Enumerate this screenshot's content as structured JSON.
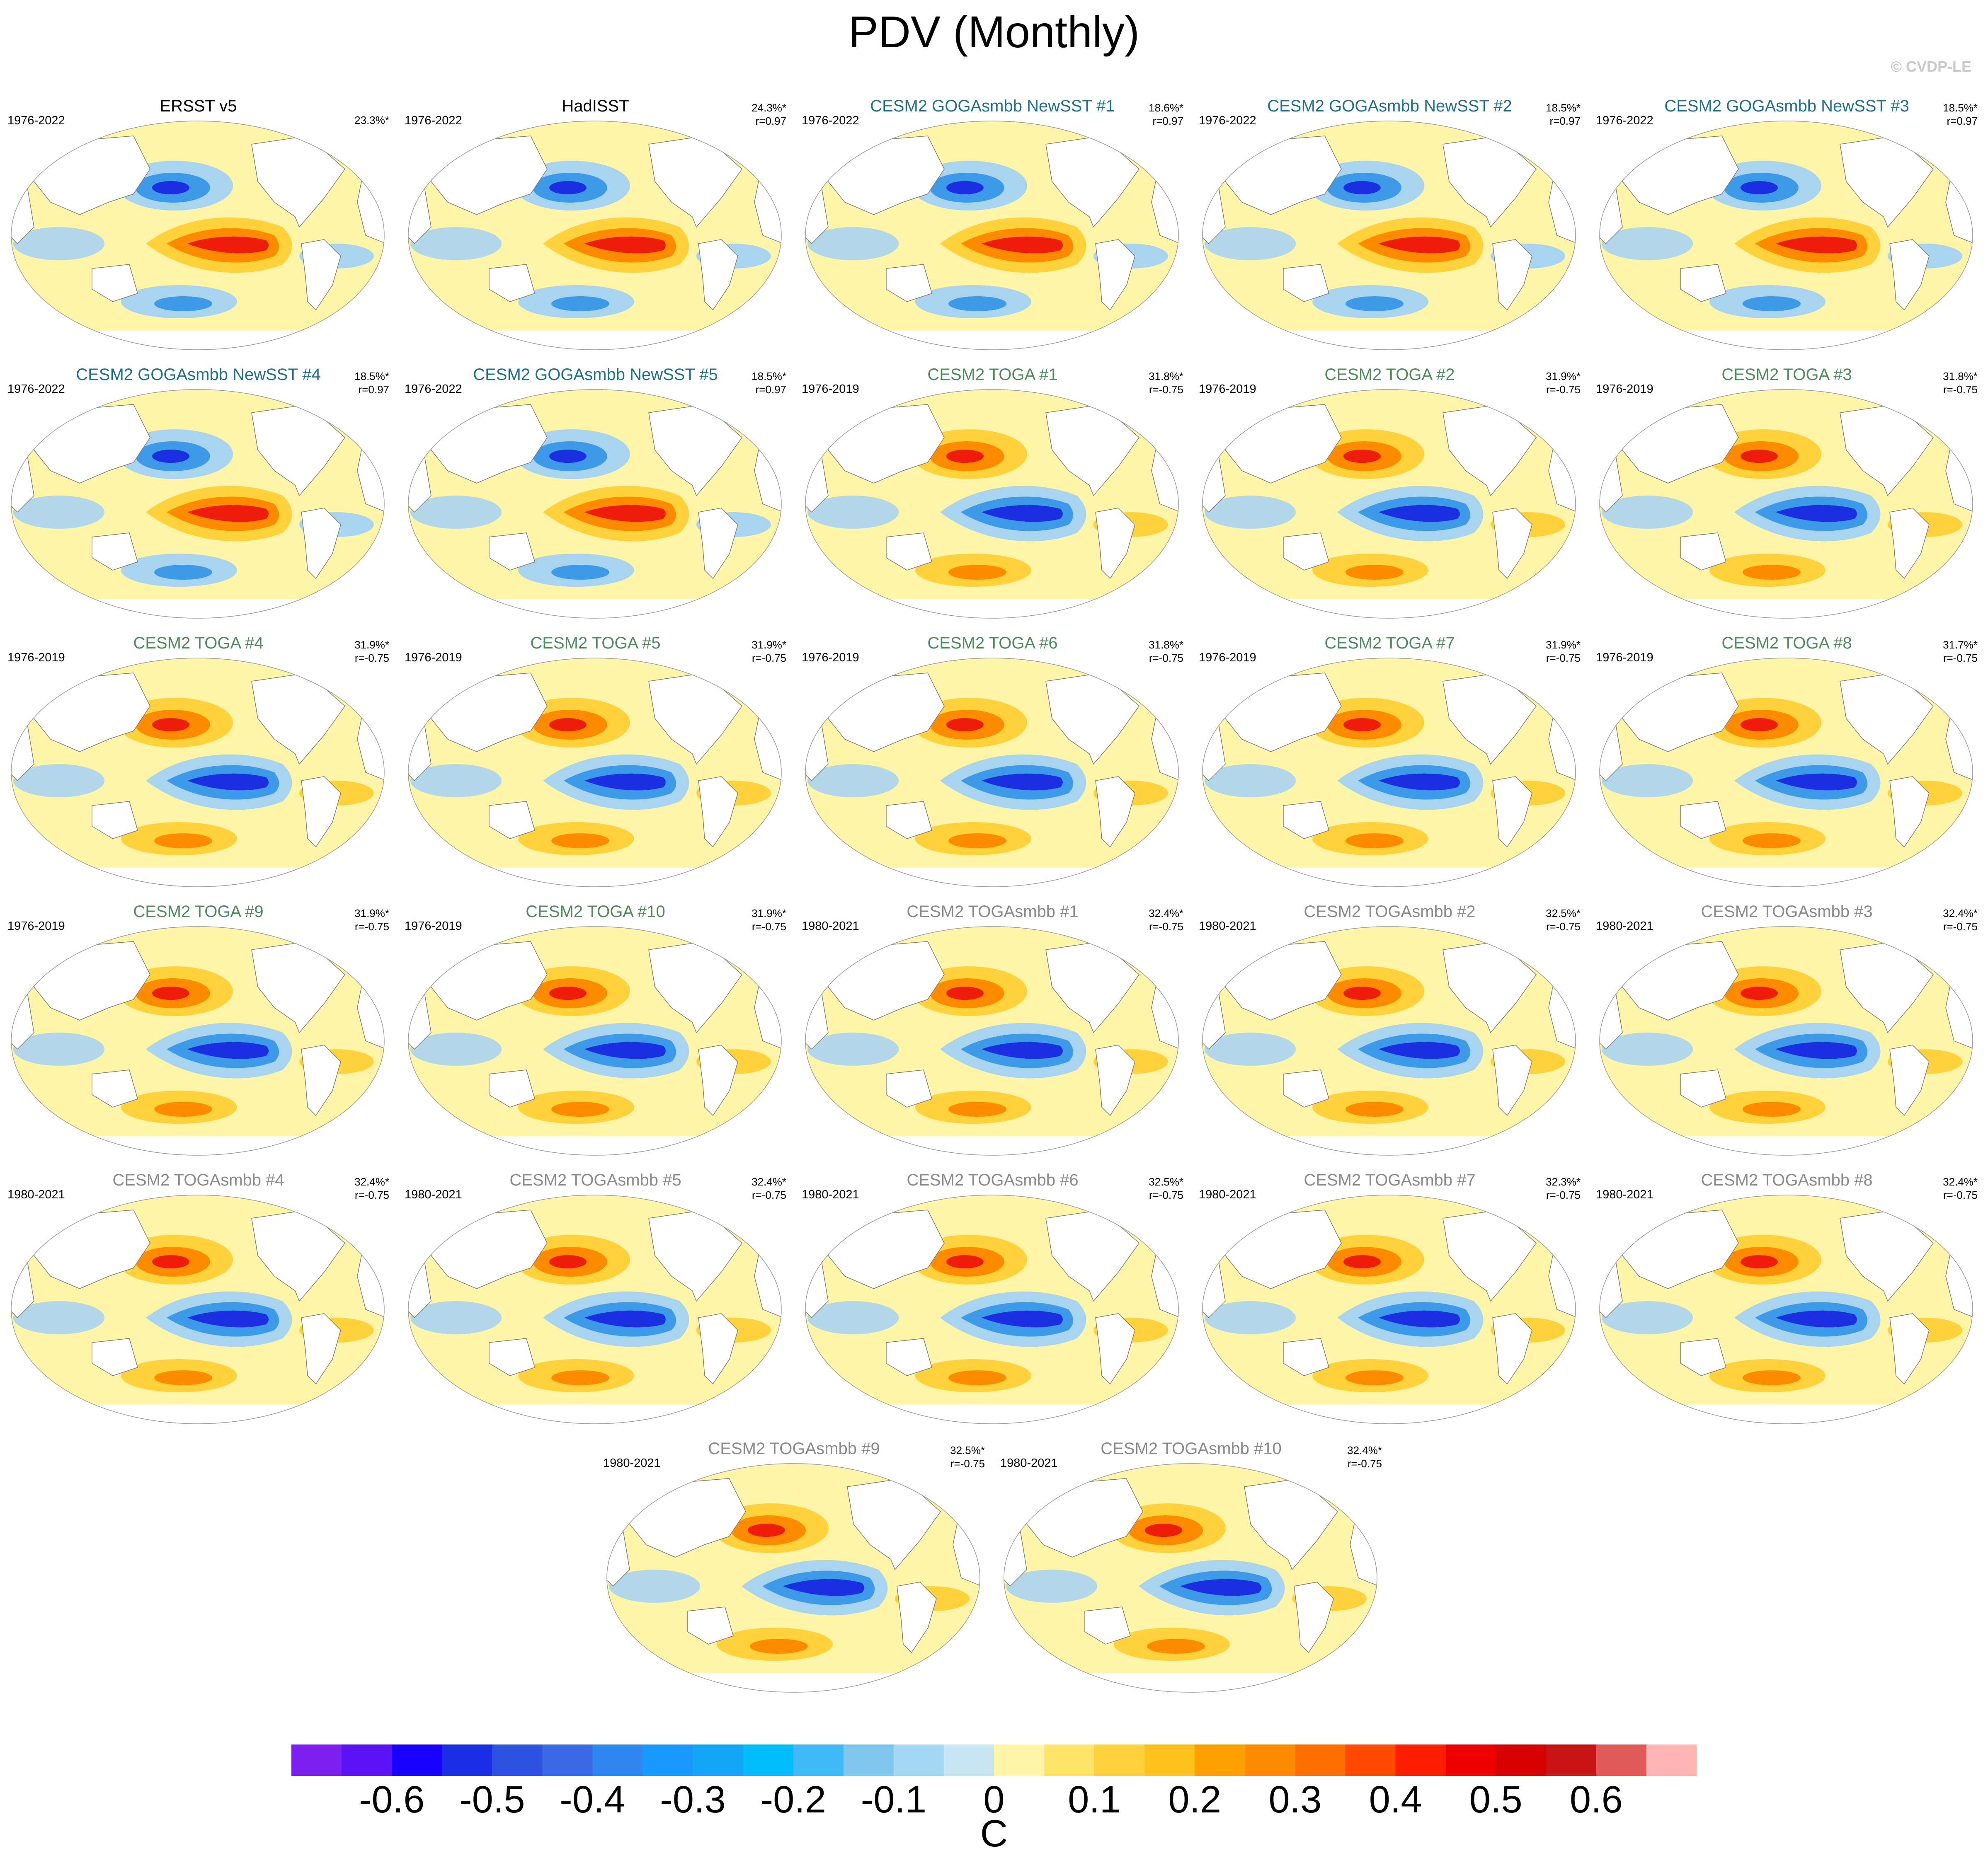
{
  "title": "PDV (Monthly)",
  "copyright": "© CVDP-LE",
  "pattern_colors": {
    "ocean": "#fff5a8",
    "land": "#ffffff",
    "coast": "#7a7a7a",
    "warm1": "#ffd23c",
    "warm2": "#ff8c00",
    "warm3": "#ee1c0a",
    "cool1": "#a8d4ef",
    "cool2": "#3d9ae8",
    "cool3": "#1a2fe0"
  },
  "title_colors": {
    "obs": "#000000",
    "goga": "#1f6e8c",
    "toga": "#4f8a5c",
    "togasmbb": "#8a8a8a"
  },
  "panels": [
    {
      "title": "ERSST v5",
      "period": "1976-2022",
      "pct": "23.3%*",
      "corr": "",
      "group": "obs"
    },
    {
      "title": "HadISST",
      "period": "1976-2022",
      "pct": "24.3%*",
      "corr": "r=0.97",
      "group": "obs"
    },
    {
      "title": "CESM2 GOGAsmbb NewSST #1",
      "period": "1976-2022",
      "pct": "18.6%*",
      "corr": "r=0.97",
      "group": "goga"
    },
    {
      "title": "CESM2 GOGAsmbb NewSST #2",
      "period": "1976-2022",
      "pct": "18.5%*",
      "corr": "r=0.97",
      "group": "goga"
    },
    {
      "title": "CESM2 GOGAsmbb NewSST #3",
      "period": "1976-2022",
      "pct": "18.5%*",
      "corr": "r=0.97",
      "group": "goga"
    },
    {
      "title": "CESM2 GOGAsmbb NewSST #4",
      "period": "1976-2022",
      "pct": "18.5%*",
      "corr": "r=0.97",
      "group": "goga"
    },
    {
      "title": "CESM2 GOGAsmbb NewSST #5",
      "period": "1976-2022",
      "pct": "18.5%*",
      "corr": "r=0.97",
      "group": "goga"
    },
    {
      "title": "CESM2 TOGA #1",
      "period": "1976-2019",
      "pct": "31.8%*",
      "corr": "r=-0.75",
      "group": "toga"
    },
    {
      "title": "CESM2 TOGA #2",
      "period": "1976-2019",
      "pct": "31.9%*",
      "corr": "r=-0.75",
      "group": "toga"
    },
    {
      "title": "CESM2 TOGA #3",
      "period": "1976-2019",
      "pct": "31.8%*",
      "corr": "r=-0.75",
      "group": "toga"
    },
    {
      "title": "CESM2 TOGA #4",
      "period": "1976-2019",
      "pct": "31.9%*",
      "corr": "r=-0.75",
      "group": "toga"
    },
    {
      "title": "CESM2 TOGA #5",
      "period": "1976-2019",
      "pct": "31.9%*",
      "corr": "r=-0.75",
      "group": "toga"
    },
    {
      "title": "CESM2 TOGA #6",
      "period": "1976-2019",
      "pct": "31.8%*",
      "corr": "r=-0.75",
      "group": "toga"
    },
    {
      "title": "CESM2 TOGA #7",
      "period": "1976-2019",
      "pct": "31.9%*",
      "corr": "r=-0.75",
      "group": "toga"
    },
    {
      "title": "CESM2 TOGA #8",
      "period": "1976-2019",
      "pct": "31.7%*",
      "corr": "r=-0.75",
      "group": "toga"
    },
    {
      "title": "CESM2 TOGA #9",
      "period": "1976-2019",
      "pct": "31.9%*",
      "corr": "r=-0.75",
      "group": "toga"
    },
    {
      "title": "CESM2 TOGA #10",
      "period": "1976-2019",
      "pct": "31.9%*",
      "corr": "r=-0.75",
      "group": "toga"
    },
    {
      "title": "CESM2 TOGAsmbb #1",
      "period": "1980-2021",
      "pct": "32.4%*",
      "corr": "r=-0.75",
      "group": "togasmbb"
    },
    {
      "title": "CESM2 TOGAsmbb #2",
      "period": "1980-2021",
      "pct": "32.5%*",
      "corr": "r=-0.75",
      "group": "togasmbb"
    },
    {
      "title": "CESM2 TOGAsmbb #3",
      "period": "1980-2021",
      "pct": "32.4%*",
      "corr": "r=-0.75",
      "group": "togasmbb"
    },
    {
      "title": "CESM2 TOGAsmbb #4",
      "period": "1980-2021",
      "pct": "32.4%*",
      "corr": "r=-0.75",
      "group": "togasmbb"
    },
    {
      "title": "CESM2 TOGAsmbb #5",
      "period": "1980-2021",
      "pct": "32.4%*",
      "corr": "r=-0.75",
      "group": "togasmbb"
    },
    {
      "title": "CESM2 TOGAsmbb #6",
      "period": "1980-2021",
      "pct": "32.5%*",
      "corr": "r=-0.75",
      "group": "togasmbb"
    },
    {
      "title": "CESM2 TOGAsmbb #7",
      "period": "1980-2021",
      "pct": "32.3%*",
      "corr": "r=-0.75",
      "group": "togasmbb"
    },
    {
      "title": "CESM2 TOGAsmbb #8",
      "period": "1980-2021",
      "pct": "32.4%*",
      "corr": "r=-0.75",
      "group": "togasmbb"
    },
    {
      "title": "CESM2 TOGAsmbb #9",
      "period": "1980-2021",
      "pct": "32.5%*",
      "corr": "r=-0.75",
      "group": "togasmbb"
    },
    {
      "title": "CESM2 TOGAsmbb #10",
      "period": "1980-2021",
      "pct": "32.4%*",
      "corr": "r=-0.75",
      "group": "togasmbb"
    }
  ],
  "colorbar": {
    "unit": "C",
    "labels": [
      "-0.6",
      "-0.5",
      "-0.4",
      "-0.3",
      "-0.2",
      "-0.1",
      "0",
      "0.1",
      "0.2",
      "0.3",
      "0.4",
      "0.5",
      "0.6"
    ],
    "colors": [
      "#7a1ff0",
      "#5a14f5",
      "#1a00ff",
      "#1d2ee8",
      "#2f52e0",
      "#3a6ae6",
      "#2e86f0",
      "#1b98ff",
      "#13a8f7",
      "#00bdfb",
      "#3fb9f4",
      "#7ec6ec",
      "#a4d8f2",
      "#c9e5f3",
      "#fff5a8",
      "#ffe66b",
      "#ffd23c",
      "#ffc21c",
      "#ffa200",
      "#ff8c00",
      "#ff6e00",
      "#ff4a00",
      "#ff1e00",
      "#ee0000",
      "#d60000",
      "#c81414",
      "#e05a5a",
      "#ffb4b4"
    ]
  }
}
